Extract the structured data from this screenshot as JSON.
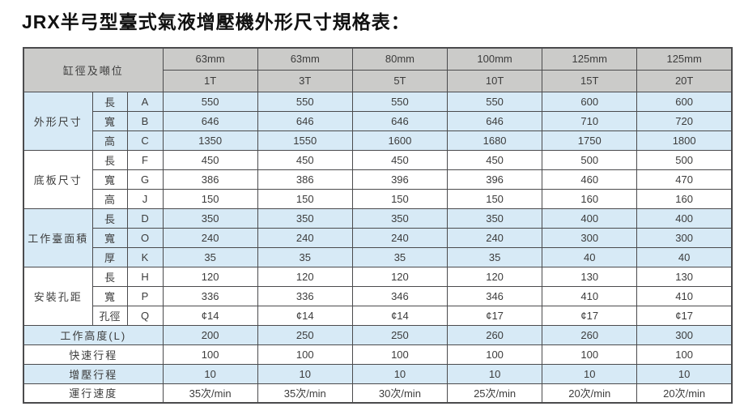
{
  "title": "JRX半弓型臺式氣液增壓機外形尺寸規格表：",
  "colors": {
    "header_bg": "#cbcbc9",
    "blue_row": "#d7eaf6",
    "white_row": "#ffffff",
    "border": "#4b4b4d",
    "text": "#3c3c3c"
  },
  "table": {
    "corner_label": "缸徑及噸位",
    "columns": [
      {
        "bore": "63mm",
        "tonnage": "1T"
      },
      {
        "bore": "63mm",
        "tonnage": "3T"
      },
      {
        "bore": "80mm",
        "tonnage": "5T"
      },
      {
        "bore": "100mm",
        "tonnage": "10T"
      },
      {
        "bore": "125mm",
        "tonnage": "15T"
      },
      {
        "bore": "125mm",
        "tonnage": "20T"
      }
    ],
    "groups": [
      {
        "name": "外形尺寸",
        "tint": "blue",
        "rows": [
          {
            "dim": "長",
            "code": "A",
            "values": [
              "550",
              "550",
              "550",
              "550",
              "600",
              "600"
            ]
          },
          {
            "dim": "寬",
            "code": "B",
            "values": [
              "646",
              "646",
              "646",
              "646",
              "710",
              "720"
            ]
          },
          {
            "dim": "高",
            "code": "C",
            "values": [
              "1350",
              "1550",
              "1600",
              "1680",
              "1750",
              "1800"
            ]
          }
        ]
      },
      {
        "name": "底板尺寸",
        "tint": "white",
        "rows": [
          {
            "dim": "長",
            "code": "F",
            "values": [
              "450",
              "450",
              "450",
              "450",
              "500",
              "500"
            ]
          },
          {
            "dim": "寬",
            "code": "G",
            "values": [
              "386",
              "386",
              "396",
              "396",
              "460",
              "470"
            ]
          },
          {
            "dim": "高",
            "code": "J",
            "values": [
              "150",
              "150",
              "150",
              "150",
              "160",
              "160"
            ]
          }
        ]
      },
      {
        "name": "工作臺面積",
        "tint": "blue",
        "rows": [
          {
            "dim": "長",
            "code": "D",
            "values": [
              "350",
              "350",
              "350",
              "350",
              "400",
              "400"
            ]
          },
          {
            "dim": "寬",
            "code": "O",
            "values": [
              "240",
              "240",
              "240",
              "240",
              "300",
              "300"
            ]
          },
          {
            "dim": "厚",
            "code": "K",
            "values": [
              "35",
              "35",
              "35",
              "35",
              "40",
              "40"
            ]
          }
        ]
      },
      {
        "name": "安裝孔距",
        "tint": "white",
        "rows": [
          {
            "dim": "長",
            "code": "H",
            "values": [
              "120",
              "120",
              "120",
              "120",
              "130",
              "130"
            ]
          },
          {
            "dim": "寬",
            "code": "P",
            "values": [
              "336",
              "336",
              "346",
              "346",
              "410",
              "410"
            ]
          },
          {
            "dim": "孔徑",
            "code": "Q",
            "values": [
              "¢14",
              "¢14",
              "¢14",
              "¢17",
              "¢17",
              "¢17"
            ]
          }
        ]
      }
    ],
    "summary_rows": [
      {
        "label": "工作高度(L)",
        "tint": "blue",
        "values": [
          "200",
          "250",
          "250",
          "260",
          "260",
          "300"
        ]
      },
      {
        "label": "快速行程",
        "tint": "white",
        "values": [
          "100",
          "100",
          "100",
          "100",
          "100",
          "100"
        ]
      },
      {
        "label": "增壓行程",
        "tint": "blue",
        "values": [
          "10",
          "10",
          "10",
          "10",
          "10",
          "10"
        ]
      },
      {
        "label": "運行速度",
        "tint": "white",
        "values": [
          "35次/min",
          "35次/min",
          "30次/min",
          "25次/min",
          "20次/min",
          "20次/min"
        ]
      }
    ]
  }
}
